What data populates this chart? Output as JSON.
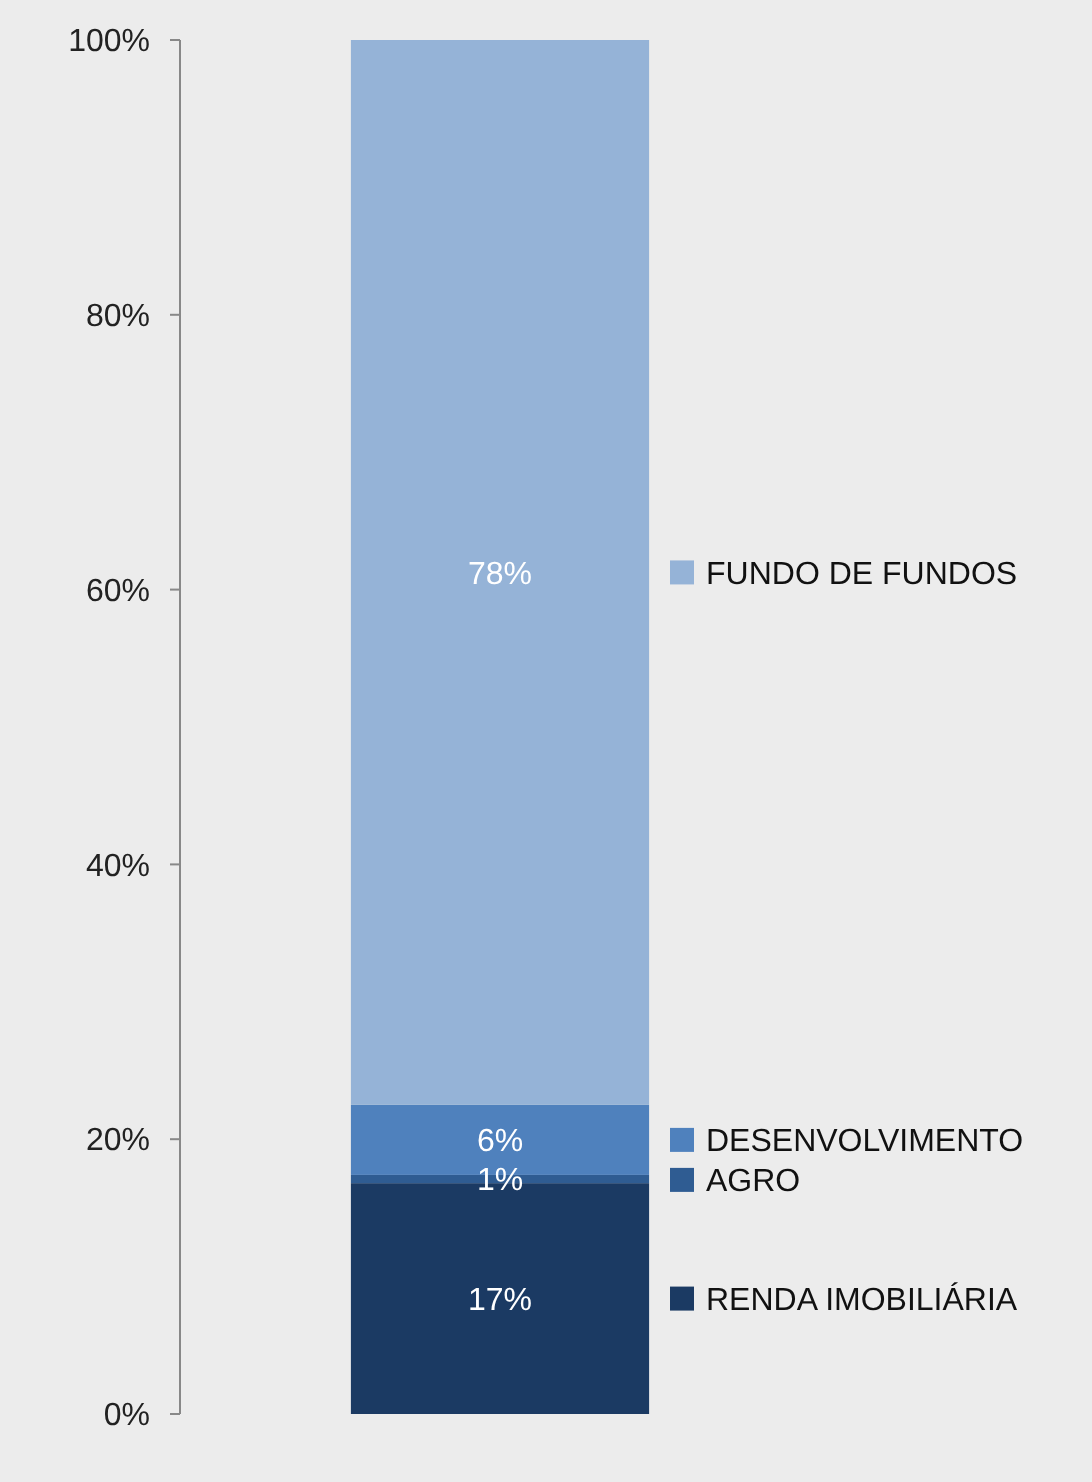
{
  "chart_data": {
    "type": "bar",
    "stacked": true,
    "categories": [
      null
    ],
    "series": [
      {
        "name": "RENDA IMOBILIÁRIA",
        "color": "#1b3a63",
        "values": [
          16.8
        ]
      },
      {
        "name": "AGRO",
        "color": "#2f5c92",
        "values": [
          0.6
        ]
      },
      {
        "name": "DESENVOLVIMENTO",
        "color": "#4f81bd",
        "values": [
          5.1
        ]
      },
      {
        "name": "FUNDO DE FUNDOS",
        "color": "#95b3d7",
        "values": [
          77.5
        ]
      }
    ],
    "value_labels": [
      "17%",
      "1%",
      "6%",
      "78%"
    ],
    "ylim": [
      0,
      100
    ],
    "yticks": [
      {
        "value": 0,
        "label": "0%"
      },
      {
        "value": 20,
        "label": "20%"
      },
      {
        "value": 40,
        "label": "40%"
      },
      {
        "value": 60,
        "label": "60%"
      },
      {
        "value": 80,
        "label": "80%"
      },
      {
        "value": 100,
        "label": "100%"
      }
    ],
    "grid": false,
    "legend": "right"
  }
}
